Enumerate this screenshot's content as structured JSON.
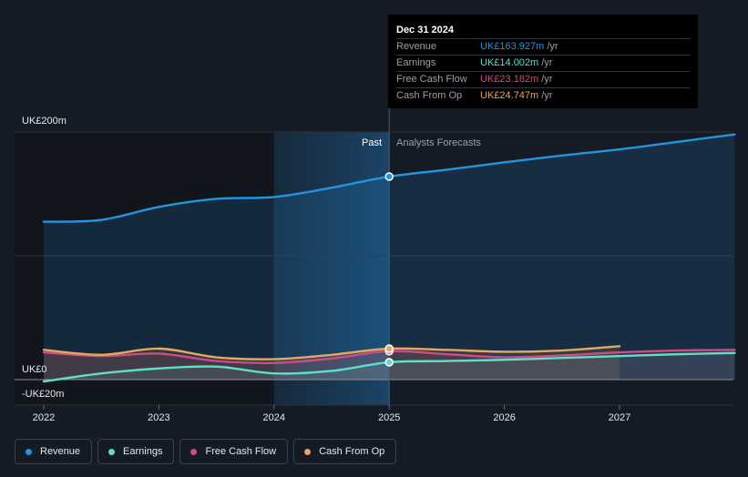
{
  "chart_data": {
    "type": "line",
    "x_ticks": [
      "2022",
      "2023",
      "2024",
      "2025",
      "2026",
      "2027"
    ],
    "y_labels": {
      "top": "UK£200m",
      "zero": "UK£0",
      "bottom": "-UK£20m"
    },
    "ylim": [
      -20,
      200
    ],
    "xlim": [
      2022.0,
      2028.0
    ],
    "divider_x": 2025.0,
    "highlight_start": 2024.0,
    "past_label": "Past",
    "forecast_label": "Analysts Forecasts",
    "series": [
      {
        "name": "Revenue",
        "color": "#2394df",
        "x": [
          2022.0,
          2022.5,
          2023.0,
          2023.5,
          2024.0,
          2024.5,
          2025.0,
          2025.5,
          2026.0,
          2026.5,
          2027.0,
          2027.5,
          2028.0
        ],
        "y": [
          127.5,
          129.0,
          139.5,
          146.0,
          147.5,
          155.0,
          164.0,
          169.5,
          175.5,
          181.0,
          186.0,
          192.0,
          198.0
        ]
      },
      {
        "name": "Earnings",
        "color": "#5fe0c6",
        "x": [
          2022.0,
          2022.5,
          2023.0,
          2023.5,
          2024.0,
          2024.5,
          2025.0,
          2025.5,
          2026.0,
          2026.5,
          2027.0,
          2027.5,
          2028.0
        ],
        "y": [
          -1.5,
          5.0,
          9.0,
          10.5,
          5.0,
          7.0,
          14.0,
          15.0,
          16.0,
          17.5,
          19.0,
          20.5,
          21.5
        ]
      },
      {
        "name": "Free Cash Flow",
        "color": "#d14a86",
        "x": [
          2022.0,
          2022.5,
          2023.0,
          2023.5,
          2024.0,
          2024.5,
          2025.0,
          2025.5,
          2026.0,
          2026.5,
          2027.0,
          2027.5,
          2028.0
        ],
        "y": [
          22.0,
          19.0,
          21.0,
          15.0,
          13.5,
          17.0,
          23.0,
          20.5,
          18.0,
          19.5,
          22.0,
          23.5,
          24.0
        ]
      },
      {
        "name": "Cash From Op",
        "color": "#e6a75f",
        "x": [
          2022.0,
          2022.5,
          2023.0,
          2023.5,
          2024.0,
          2024.5,
          2025.0,
          2025.5,
          2026.0,
          2026.5,
          2027.0
        ],
        "y": [
          24.0,
          20.0,
          25.0,
          18.0,
          16.5,
          20.0,
          25.0,
          24.0,
          22.5,
          23.5,
          27.0
        ]
      }
    ]
  },
  "tooltip": {
    "date": "Dec 31 2024",
    "rows": [
      {
        "label": "Revenue",
        "value": "UK£163.927m",
        "unit": "/yr",
        "color": "#2394df"
      },
      {
        "label": "Earnings",
        "value": "UK£14.002m",
        "unit": "/yr",
        "color": "#5fe0c6"
      },
      {
        "label": "Free Cash Flow",
        "value": "UK£23.182m",
        "unit": "/yr",
        "color": "#d14a86"
      },
      {
        "label": "Cash From Op",
        "value": "UK£24.747m",
        "unit": "/yr",
        "color": "#e6a75f"
      }
    ]
  },
  "legend": [
    {
      "label": "Revenue",
      "color": "#2394df"
    },
    {
      "label": "Earnings",
      "color": "#5fe0c6"
    },
    {
      "label": "Free Cash Flow",
      "color": "#d14a86"
    },
    {
      "label": "Cash From Op",
      "color": "#e6a75f"
    }
  ]
}
